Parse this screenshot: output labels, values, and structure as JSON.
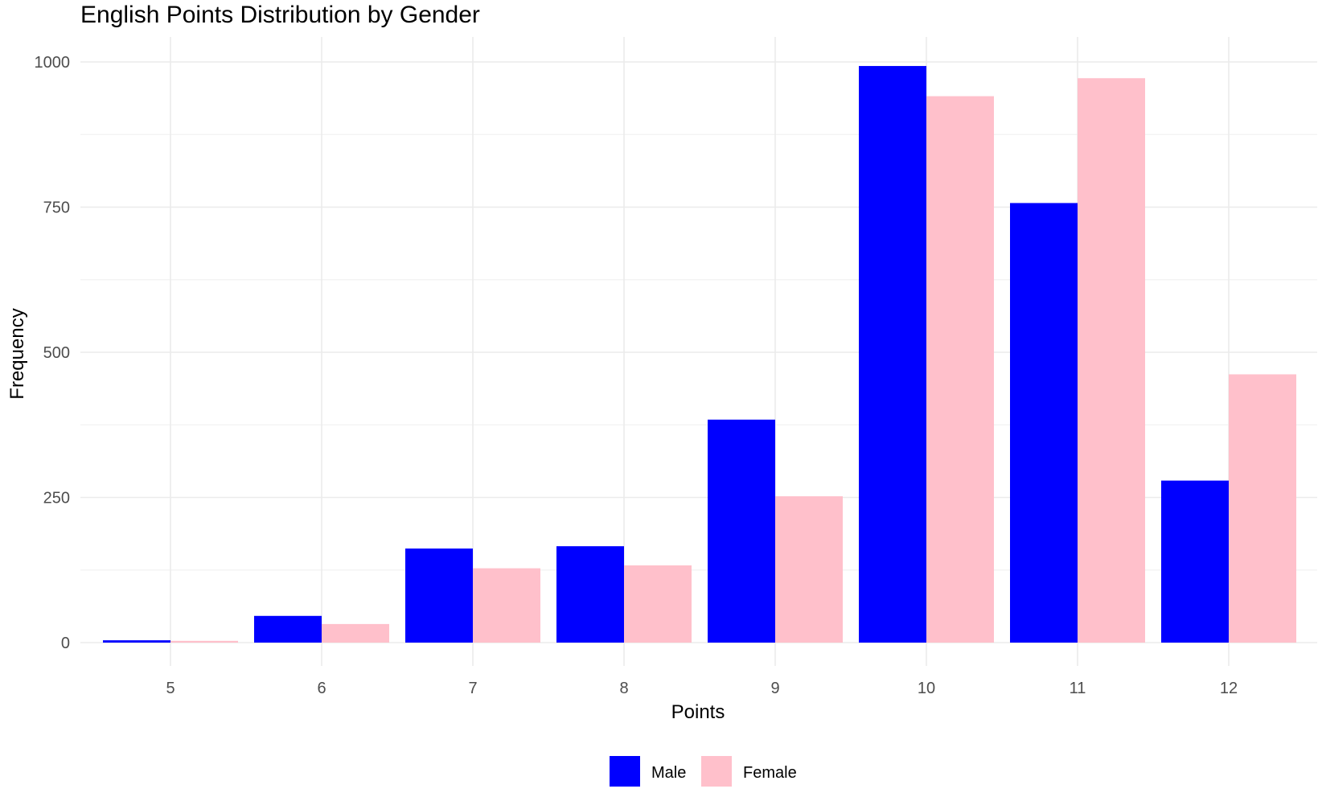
{
  "chart_data": {
    "type": "bar",
    "title": "English Points Distribution by Gender",
    "xlabel": "Points",
    "ylabel": "Frequency",
    "categories": [
      "5",
      "6",
      "7",
      "8",
      "9",
      "10",
      "11",
      "12"
    ],
    "series": [
      {
        "name": "Male",
        "color": "#0000ff",
        "values": [
          4,
          46,
          162,
          166,
          384,
          993,
          757,
          279
        ]
      },
      {
        "name": "Female",
        "color": "#ffc0cb",
        "values": [
          3,
          32,
          128,
          133,
          252,
          941,
          972,
          462
        ]
      }
    ],
    "ylim": [
      0,
      1000
    ],
    "yticks": [
      0,
      250,
      500,
      750,
      1000
    ],
    "grid": true,
    "legend_position": "bottom"
  }
}
